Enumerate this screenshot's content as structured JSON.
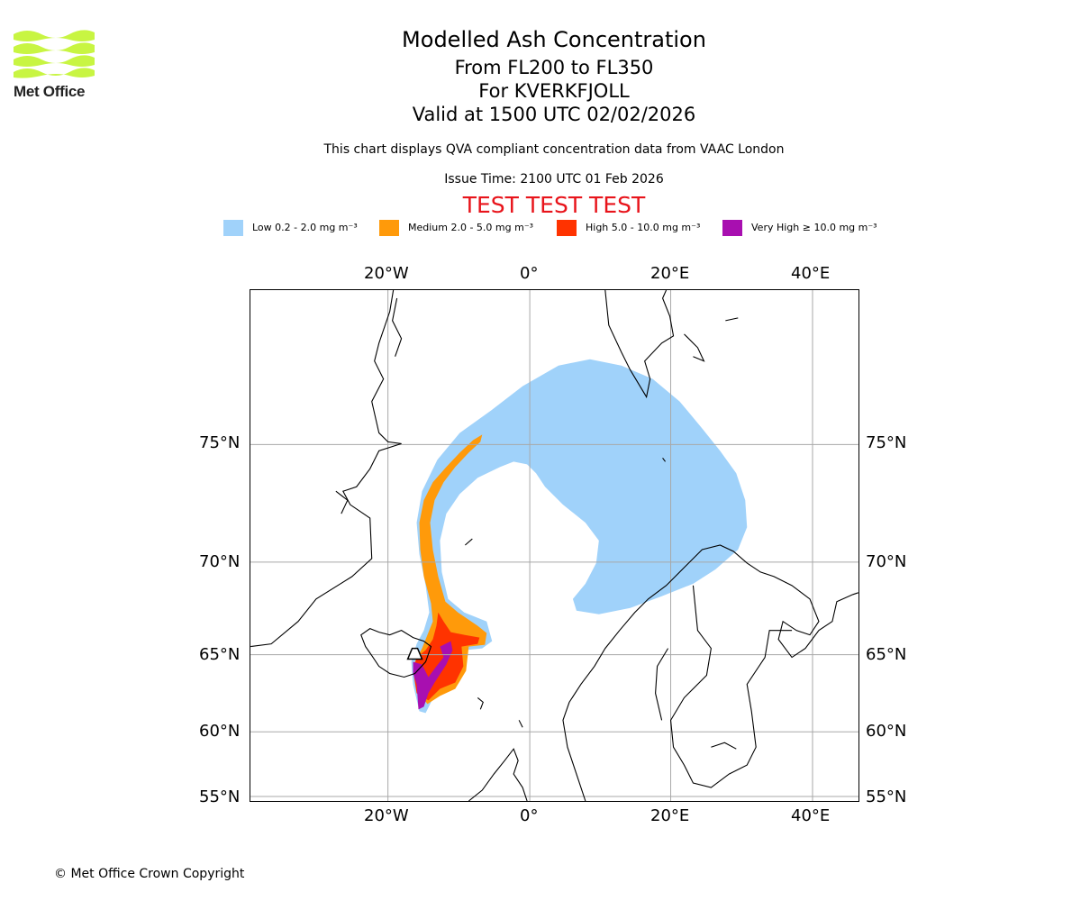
{
  "header": {
    "title": "Modelled Ash Concentration",
    "levels": "From FL200 to FL350",
    "volcano": "For KVERKFJOLL",
    "valid": "Valid at 1500 UTC 02/02/2026",
    "description": "This chart displays QVA compliant concentration data from VAAC London",
    "issue_time": "Issue Time: 2100 UTC 01 Feb 2026",
    "test_banner": "TEST TEST TEST"
  },
  "logo": {
    "text": "Met Office",
    "color": "#c8f542"
  },
  "legend": [
    {
      "label": "Low 0.2 - 2.0 mg m⁻³",
      "color": "#a0d2fa"
    },
    {
      "label": "Medium 2.0 - 5.0 mg m⁻³",
      "color": "#ff9a0a"
    },
    {
      "label": "High 5.0 - 10.0 mg m⁻³",
      "color": "#ff3300"
    },
    {
      "label": "Very High ≥ 10.0 mg m⁻³",
      "color": "#a80fb0"
    }
  ],
  "map": {
    "lon_ticks": [
      "20°W",
      "0°",
      "20°E",
      "40°E"
    ],
    "lat_ticks": [
      "75°N",
      "70°N",
      "65°N",
      "60°N",
      "55°N"
    ],
    "grid_color": "#a8a8a8",
    "coast_color": "#000000"
  },
  "footer": {
    "copyright": "© Met Office Crown Copyright"
  }
}
